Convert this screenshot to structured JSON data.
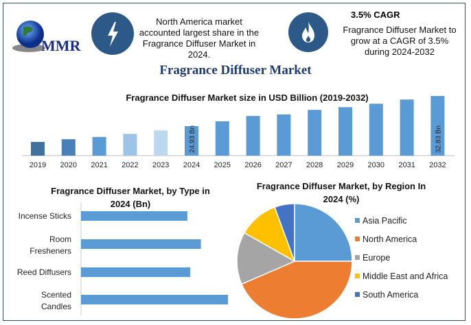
{
  "logo": {
    "text": "MMR",
    "icon": "globe-icon"
  },
  "highlights": [
    {
      "icon": "lightning-icon",
      "text": "North America market accounted largest share in the Fragrance Diffuser Market in 2024."
    },
    {
      "icon": "flame-icon",
      "heading": "3.5% CAGR",
      "text": "Fragrance Diffuser Market to grow at a CAGR of 3.5% during 2024-2032"
    }
  ],
  "page_title": "Fragrance Diffuser Market",
  "colors": {
    "primary_bar": "#5b9bd5",
    "icon_circle": "#2c5987",
    "title": "#1f3a6e"
  },
  "chart_data": [
    {
      "type": "bar",
      "title": "Fragrance Diffuser Market size in USD Billion (2019-2032)",
      "categories": [
        "2019",
        "2020",
        "2021",
        "2022",
        "2023",
        "2024",
        "2025",
        "2026",
        "2027",
        "2028",
        "2029",
        "2030",
        "2031",
        "2032"
      ],
      "values": [
        20.8,
        21.5,
        22.1,
        22.9,
        23.8,
        24.93,
        26.2,
        27.6,
        28.0,
        29.2,
        29.9,
        30.8,
        31.9,
        32.83
      ],
      "data_labels": {
        "2024": "24.93 Bn",
        "2032": "32.83 Bn"
      },
      "bar_colors": [
        "#41729f",
        "#4a80b8",
        "#5b9bd5",
        "#9dc3e6",
        "#bdd7ee",
        "#5b9bd5",
        "#5b9bd5",
        "#5b9bd5",
        "#5b9bd5",
        "#5b9bd5",
        "#5b9bd5",
        "#5b9bd5",
        "#5b9bd5",
        "#5b9bd5"
      ],
      "ylim": [
        17.2,
        33.5
      ],
      "grid": false
    },
    {
      "type": "bar",
      "orientation": "horizontal",
      "title": "Fragrance Diffuser Market, by Type in 2024 (Bn)",
      "categories": [
        "Incense Sticks",
        "Room Fresheners",
        "Reed Diffusers",
        "Scented Candles"
      ],
      "values": [
        5.5,
        6.2,
        5.65,
        7.6
      ],
      "xlim": [
        0,
        7.6
      ],
      "grid": false
    },
    {
      "type": "pie",
      "title": "Fragrance Diffuser Market, by Region In 2024 (%)",
      "categories": [
        "Asia Pacific",
        "North America",
        "Europe",
        "Middle East and Africa",
        "South America"
      ],
      "values": [
        25.0,
        43.5,
        14.7,
        11.2,
        5.6
      ],
      "colors": [
        "#5b9bd5",
        "#ed7d31",
        "#a5a5a5",
        "#ffc000",
        "#4472c4"
      ],
      "legend": "right"
    }
  ]
}
